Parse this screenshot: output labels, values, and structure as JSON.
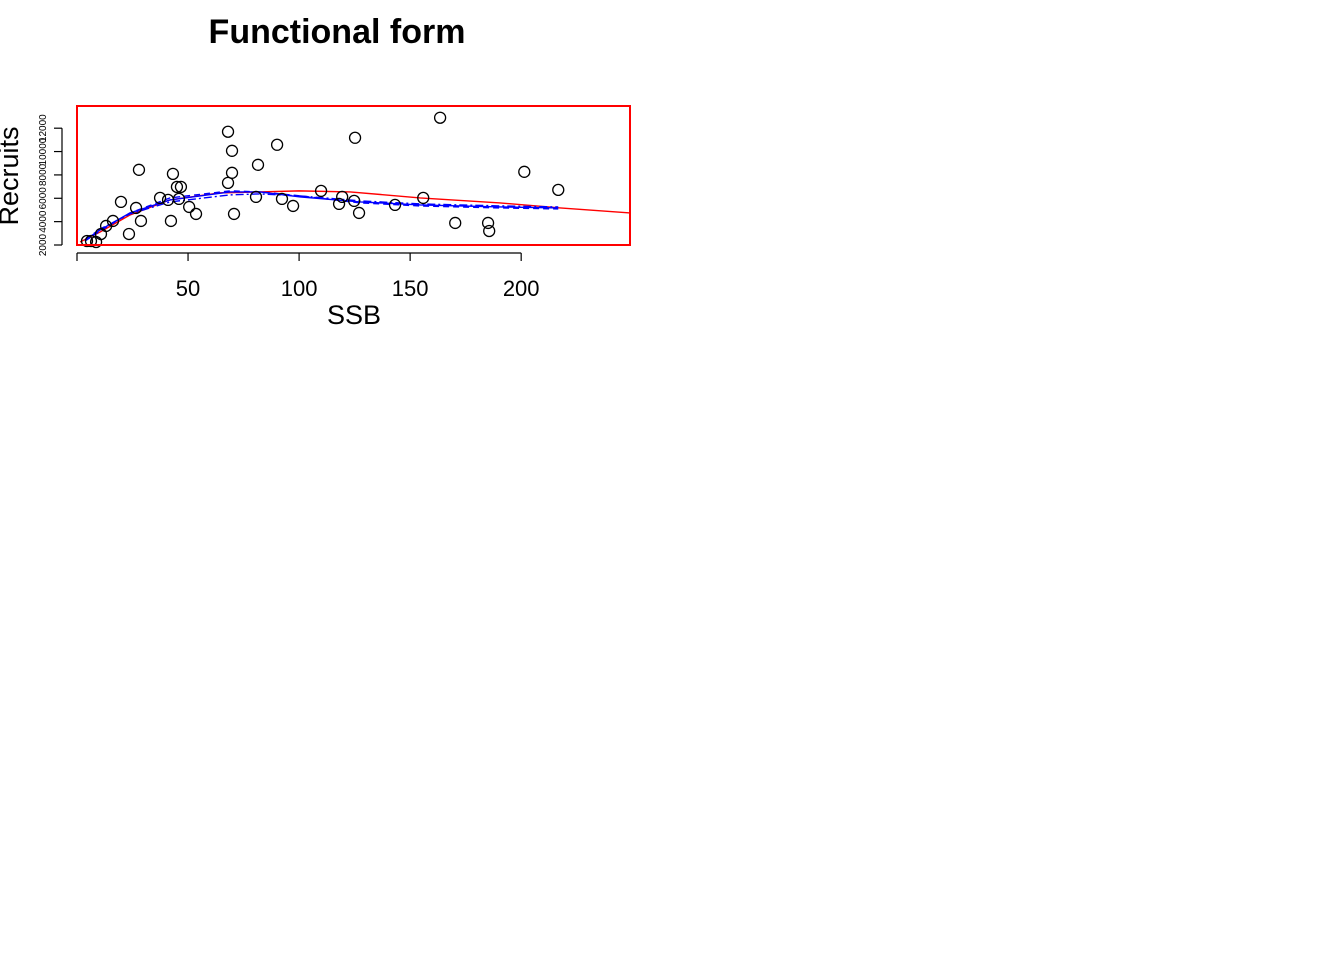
{
  "chart_data": {
    "type": "scatter",
    "title": "Functional form",
    "xlabel": "SSB",
    "ylabel": "Recruits",
    "xlim": [
      0,
      249
    ],
    "ylim": [
      2000,
      13900
    ],
    "xticks": [
      50,
      100,
      150,
      200
    ],
    "yticks": [
      2000,
      4000,
      6000,
      8000,
      10000,
      12000
    ],
    "frame_color": "#ff0000",
    "point_color": "#000000",
    "points": {
      "x": [
        4.5,
        6.3,
        8.6,
        10.8,
        13.1,
        16.2,
        19.8,
        23.4,
        26.6,
        27.9,
        28.8,
        37.4,
        41.0,
        42.3,
        43.2,
        45.0,
        46.8,
        45.9,
        50.5,
        53.6,
        68.0,
        68.0,
        69.8,
        69.8,
        70.7,
        80.6,
        81.5,
        90.1,
        92.3,
        97.3,
        109.9,
        118.0,
        119.4,
        124.8,
        125.2,
        127.0,
        143.2,
        155.9,
        163.5,
        170.3,
        185.1,
        185.6,
        201.4,
        216.7
      ],
      "y": [
        2343,
        2343,
        2257,
        2944,
        3630,
        4059,
        5689,
        2944,
        5175,
        8435,
        4059,
        6033,
        5861,
        4059,
        8092,
        6976,
        6976,
        5947,
        5260,
        4660,
        11695,
        7320,
        10065,
        8178,
        4660,
        6118,
        8864,
        10580,
        5947,
        5346,
        6633,
        5518,
        6118,
        5775,
        11181,
        4746,
        5432,
        6033,
        12897,
        3888,
        3888,
        3201,
        8264,
        6719
      ]
    },
    "lines": [
      {
        "color": "#ff0000",
        "linestyle": "solid",
        "x": [
          1.4,
          10.4,
          23.9,
          41.9,
          64.4,
          100,
          123,
          154.5,
          190.5,
          217.6,
          249
        ],
        "y": [
          2257,
          3115,
          4574,
          5861,
          6462,
          6633,
          6547,
          6033,
          5604,
          5175,
          4746
        ]
      },
      {
        "color": "#0000ff",
        "linestyle": "solid",
        "x": [
          3.6,
          10.4,
          23.9,
          41.9,
          68.9,
          82.4,
          100.5,
          127.5,
          154.5,
          190.5,
          216.7
        ],
        "y": [
          2429,
          3287,
          4746,
          5861,
          6547,
          6547,
          6118,
          5689,
          5432,
          5260,
          5175
        ]
      },
      {
        "color": "#0000ff",
        "linestyle": "dashed",
        "x": [
          3.6,
          10.4,
          23.9,
          41.9,
          68.9,
          82.4,
          100.5,
          127.5,
          154.5,
          190.5,
          216.7
        ],
        "y": [
          2343,
          3201,
          4746,
          6033,
          6633,
          6547,
          6204,
          5604,
          5346,
          5175,
          5089
        ]
      },
      {
        "color": "#0000ff",
        "linestyle": "dashdot",
        "x": [
          3.6,
          10.4,
          23.9,
          41.9,
          68.9,
          82.4,
          100.5,
          127.5,
          154.5,
          190.5,
          216.7
        ],
        "y": [
          2429,
          3373,
          4660,
          5689,
          6290,
          6376,
          6204,
          5775,
          5518,
          5346,
          5260
        ]
      }
    ]
  }
}
